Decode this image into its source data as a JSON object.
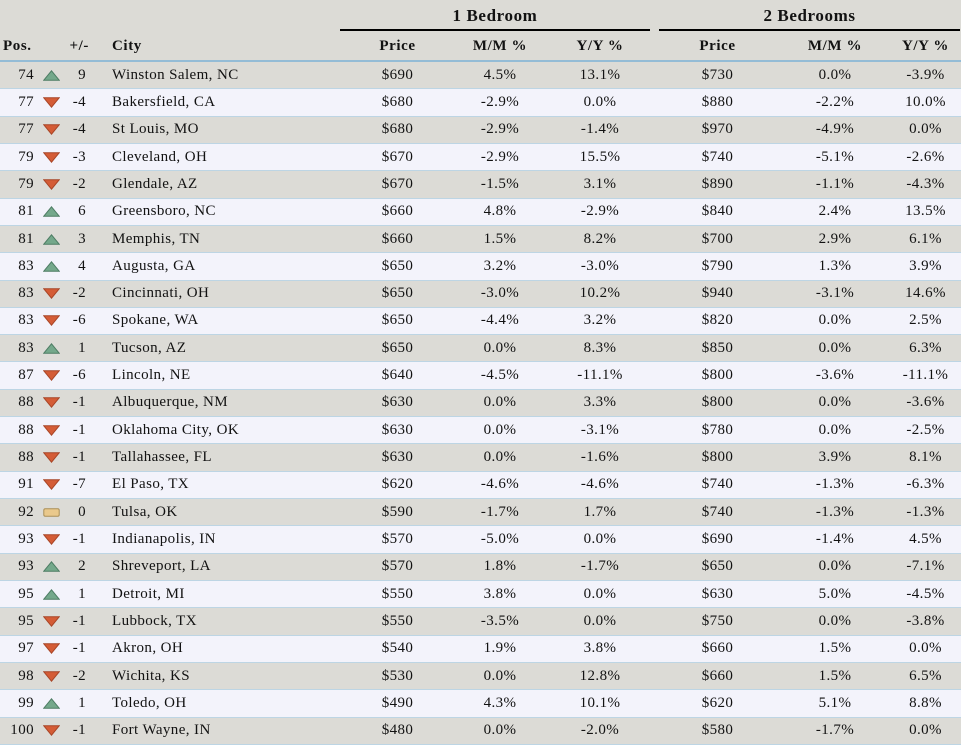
{
  "chart_data": {
    "type": "table",
    "group_headers": [
      {
        "label": "1 Bedroom"
      },
      {
        "label": "2 Bedrooms"
      }
    ],
    "columns": [
      "Pos.",
      "+/-",
      "City",
      "Price",
      "M/M %",
      "Y/Y %",
      "Price",
      "M/M %",
      "Y/Y %"
    ],
    "rows": [
      {
        "pos": "74",
        "dir": "up",
        "change": "9",
        "city": "Winston Salem, NC",
        "br1_price": "$690",
        "br1_mm": "4.5%",
        "br1_yy": "13.1%",
        "br2_price": "$730",
        "br2_mm": "0.0%",
        "br2_yy": "-3.9%"
      },
      {
        "pos": "77",
        "dir": "down",
        "change": "-4",
        "city": "Bakersfield, CA",
        "br1_price": "$680",
        "br1_mm": "-2.9%",
        "br1_yy": "0.0%",
        "br2_price": "$880",
        "br2_mm": "-2.2%",
        "br2_yy": "10.0%"
      },
      {
        "pos": "77",
        "dir": "down",
        "change": "-4",
        "city": "St Louis, MO",
        "br1_price": "$680",
        "br1_mm": "-2.9%",
        "br1_yy": "-1.4%",
        "br2_price": "$970",
        "br2_mm": "-4.9%",
        "br2_yy": "0.0%"
      },
      {
        "pos": "79",
        "dir": "down",
        "change": "-3",
        "city": "Cleveland, OH",
        "br1_price": "$670",
        "br1_mm": "-2.9%",
        "br1_yy": "15.5%",
        "br2_price": "$740",
        "br2_mm": "-5.1%",
        "br2_yy": "-2.6%"
      },
      {
        "pos": "79",
        "dir": "down",
        "change": "-2",
        "city": "Glendale, AZ",
        "br1_price": "$670",
        "br1_mm": "-1.5%",
        "br1_yy": "3.1%",
        "br2_price": "$890",
        "br2_mm": "-1.1%",
        "br2_yy": "-4.3%"
      },
      {
        "pos": "81",
        "dir": "up",
        "change": "6",
        "city": "Greensboro, NC",
        "br1_price": "$660",
        "br1_mm": "4.8%",
        "br1_yy": "-2.9%",
        "br2_price": "$840",
        "br2_mm": "2.4%",
        "br2_yy": "13.5%"
      },
      {
        "pos": "81",
        "dir": "up",
        "change": "3",
        "city": "Memphis, TN",
        "br1_price": "$660",
        "br1_mm": "1.5%",
        "br1_yy": "8.2%",
        "br2_price": "$700",
        "br2_mm": "2.9%",
        "br2_yy": "6.1%"
      },
      {
        "pos": "83",
        "dir": "up",
        "change": "4",
        "city": "Augusta, GA",
        "br1_price": "$650",
        "br1_mm": "3.2%",
        "br1_yy": "-3.0%",
        "br2_price": "$790",
        "br2_mm": "1.3%",
        "br2_yy": "3.9%"
      },
      {
        "pos": "83",
        "dir": "down",
        "change": "-2",
        "city": "Cincinnati, OH",
        "br1_price": "$650",
        "br1_mm": "-3.0%",
        "br1_yy": "10.2%",
        "br2_price": "$940",
        "br2_mm": "-3.1%",
        "br2_yy": "14.6%"
      },
      {
        "pos": "83",
        "dir": "down",
        "change": "-6",
        "city": "Spokane, WA",
        "br1_price": "$650",
        "br1_mm": "-4.4%",
        "br1_yy": "3.2%",
        "br2_price": "$820",
        "br2_mm": "0.0%",
        "br2_yy": "2.5%"
      },
      {
        "pos": "83",
        "dir": "up",
        "change": "1",
        "city": "Tucson, AZ",
        "br1_price": "$650",
        "br1_mm": "0.0%",
        "br1_yy": "8.3%",
        "br2_price": "$850",
        "br2_mm": "0.0%",
        "br2_yy": "6.3%"
      },
      {
        "pos": "87",
        "dir": "down",
        "change": "-6",
        "city": "Lincoln, NE",
        "br1_price": "$640",
        "br1_mm": "-4.5%",
        "br1_yy": "-11.1%",
        "br2_price": "$800",
        "br2_mm": "-3.6%",
        "br2_yy": "-11.1%"
      },
      {
        "pos": "88",
        "dir": "down",
        "change": "-1",
        "city": "Albuquerque, NM",
        "br1_price": "$630",
        "br1_mm": "0.0%",
        "br1_yy": "3.3%",
        "br2_price": "$800",
        "br2_mm": "0.0%",
        "br2_yy": "-3.6%"
      },
      {
        "pos": "88",
        "dir": "down",
        "change": "-1",
        "city": "Oklahoma City, OK",
        "br1_price": "$630",
        "br1_mm": "0.0%",
        "br1_yy": "-3.1%",
        "br2_price": "$780",
        "br2_mm": "0.0%",
        "br2_yy": "-2.5%"
      },
      {
        "pos": "88",
        "dir": "down",
        "change": "-1",
        "city": "Tallahassee, FL",
        "br1_price": "$630",
        "br1_mm": "0.0%",
        "br1_yy": "-1.6%",
        "br2_price": "$800",
        "br2_mm": "3.9%",
        "br2_yy": "8.1%"
      },
      {
        "pos": "91",
        "dir": "down",
        "change": "-7",
        "city": "El Paso, TX",
        "br1_price": "$620",
        "br1_mm": "-4.6%",
        "br1_yy": "-4.6%",
        "br2_price": "$740",
        "br2_mm": "-1.3%",
        "br2_yy": "-6.3%"
      },
      {
        "pos": "92",
        "dir": "flat",
        "change": "0",
        "city": "Tulsa, OK",
        "br1_price": "$590",
        "br1_mm": "-1.7%",
        "br1_yy": "1.7%",
        "br2_price": "$740",
        "br2_mm": "-1.3%",
        "br2_yy": "-1.3%"
      },
      {
        "pos": "93",
        "dir": "down",
        "change": "-1",
        "city": "Indianapolis, IN",
        "br1_price": "$570",
        "br1_mm": "-5.0%",
        "br1_yy": "0.0%",
        "br2_price": "$690",
        "br2_mm": "-1.4%",
        "br2_yy": "4.5%"
      },
      {
        "pos": "93",
        "dir": "up",
        "change": "2",
        "city": "Shreveport, LA",
        "br1_price": "$570",
        "br1_mm": "1.8%",
        "br1_yy": "-1.7%",
        "br2_price": "$650",
        "br2_mm": "0.0%",
        "br2_yy": "-7.1%"
      },
      {
        "pos": "95",
        "dir": "up",
        "change": "1",
        "city": "Detroit, MI",
        "br1_price": "$550",
        "br1_mm": "3.8%",
        "br1_yy": "0.0%",
        "br2_price": "$630",
        "br2_mm": "5.0%",
        "br2_yy": "-4.5%"
      },
      {
        "pos": "95",
        "dir": "down",
        "change": "-1",
        "city": "Lubbock, TX",
        "br1_price": "$550",
        "br1_mm": "-3.5%",
        "br1_yy": "0.0%",
        "br2_price": "$750",
        "br2_mm": "0.0%",
        "br2_yy": "-3.8%"
      },
      {
        "pos": "97",
        "dir": "down",
        "change": "-1",
        "city": "Akron, OH",
        "br1_price": "$540",
        "br1_mm": "1.9%",
        "br1_yy": "3.8%",
        "br2_price": "$660",
        "br2_mm": "1.5%",
        "br2_yy": "0.0%"
      },
      {
        "pos": "98",
        "dir": "down",
        "change": "-2",
        "city": "Wichita, KS",
        "br1_price": "$530",
        "br1_mm": "0.0%",
        "br1_yy": "12.8%",
        "br2_price": "$660",
        "br2_mm": "1.5%",
        "br2_yy": "6.5%"
      },
      {
        "pos": "99",
        "dir": "up",
        "change": "1",
        "city": "Toledo, OH",
        "br1_price": "$490",
        "br1_mm": "4.3%",
        "br1_yy": "10.1%",
        "br2_price": "$620",
        "br2_mm": "5.1%",
        "br2_yy": "8.8%"
      },
      {
        "pos": "100",
        "dir": "down",
        "change": "-1",
        "city": "Fort Wayne, IN",
        "br1_price": "$480",
        "br1_mm": "0.0%",
        "br1_yy": "-2.0%",
        "br2_price": "$580",
        "br2_mm": "-1.7%",
        "br2_yy": "0.0%"
      }
    ]
  },
  "colors": {
    "row_gray": "#dcdbd6",
    "row_light": "#f3f3fb",
    "separator": "#bdd5e4",
    "header_rule": "#94bcd6",
    "group_underline": "#000000",
    "up_arrow": "#74a88b",
    "up_arrow_border": "#4d7c63",
    "down_arrow": "#d45c36",
    "down_arrow_border": "#a84526",
    "flat_badge": "#eac98c",
    "flat_badge_border": "#ab8f55",
    "text": "#121212"
  }
}
